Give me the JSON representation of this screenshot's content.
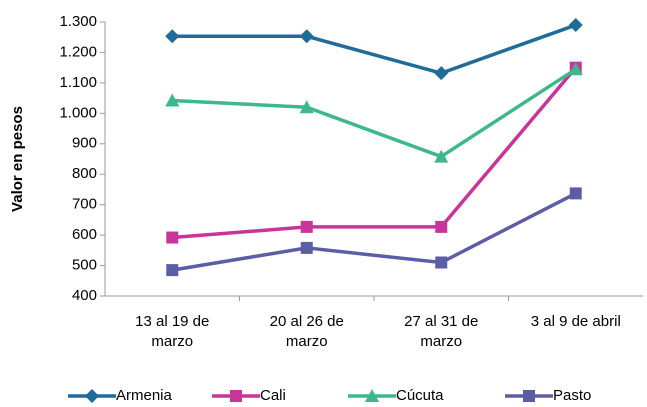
{
  "chart_data": {
    "type": "line",
    "y_label": "Valor en pesos",
    "categories": [
      "13 al 19 de marzo",
      "20 al 26 de marzo",
      "27 al 31 de marzo",
      "3 al 9 de abril"
    ],
    "series": [
      {
        "name": "Armenia",
        "color": "#1f6b9a",
        "marker": "diamond",
        "values": [
          1253,
          1253,
          1132,
          1290
        ]
      },
      {
        "name": "Cali",
        "color": "#c8349a",
        "marker": "square",
        "values": [
          592,
          627,
          627,
          1150
        ]
      },
      {
        "name": "Cúcuta",
        "color": "#3cb88a",
        "marker": "triangle",
        "values": [
          1042,
          1020,
          858,
          1145
        ]
      },
      {
        "name": "Pasto",
        "color": "#5b5ea6",
        "marker": "square",
        "values": [
          485,
          558,
          510,
          737
        ]
      }
    ],
    "ylim": [
      400,
      1300
    ],
    "yticks": [
      400,
      500,
      600,
      700,
      800,
      900,
      {
        "value": 1000,
        "label": "1.000"
      },
      {
        "value": 1100,
        "label": "1.100"
      },
      {
        "value": 1200,
        "label": "1.200"
      },
      {
        "value": 1300,
        "label": "1.300"
      }
    ],
    "legend": "bottom",
    "grid": false
  }
}
